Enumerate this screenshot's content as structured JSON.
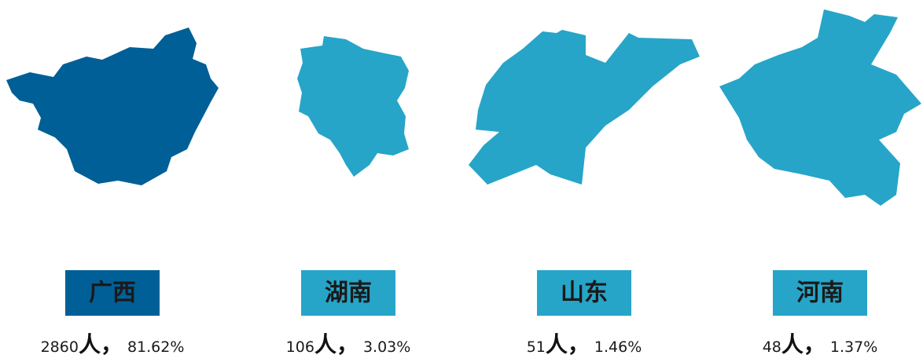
{
  "items": [
    {
      "name": "广西",
      "count": "2860",
      "unit": "人，",
      "percent": "81.62%",
      "color": "#005f96"
    },
    {
      "name": "湖南",
      "count": "106",
      "unit": "人，",
      "percent": "3.03%",
      "color": "#26a5c8"
    },
    {
      "name": "山东",
      "count": "51",
      "unit": "人，",
      "percent": "1.46%",
      "color": "#26a5c8"
    },
    {
      "name": "河南",
      "count": "48",
      "unit": "人，",
      "percent": "1.37%",
      "color": "#26a5c8"
    }
  ]
}
